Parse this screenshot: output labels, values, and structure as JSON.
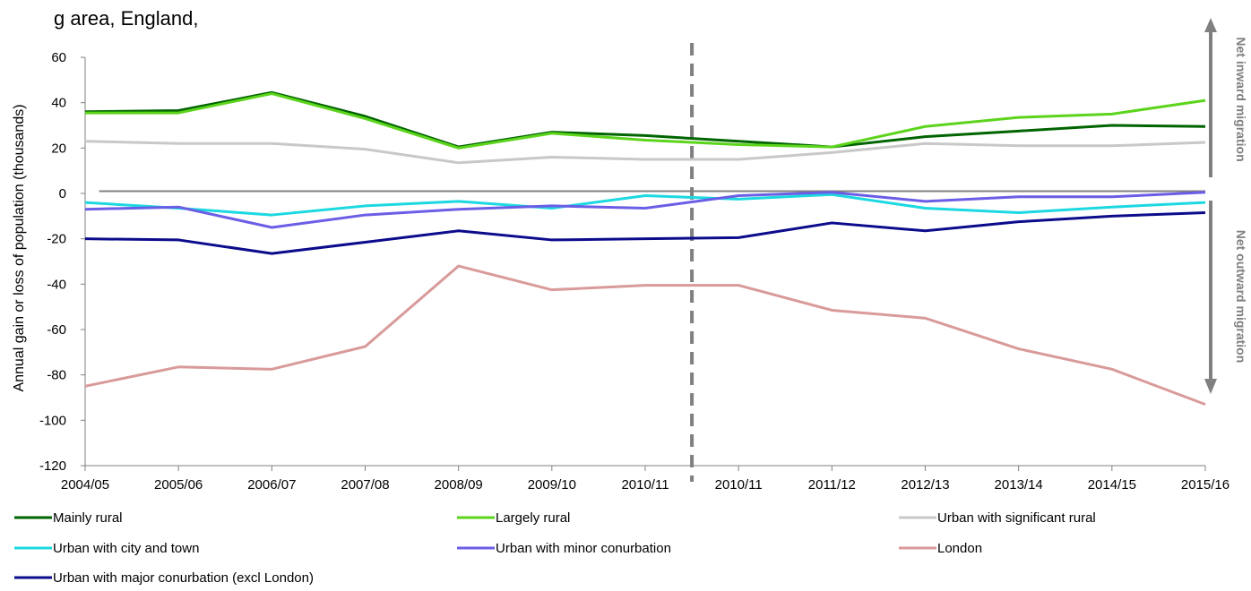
{
  "chart_data": {
    "type": "line",
    "title": "g area, England, ",
    "ylabel": "Annual gain or loss of population (thousands)",
    "xlabel": "",
    "ylim": [
      -120,
      60
    ],
    "yticks": [
      60,
      40,
      20,
      0,
      -20,
      -40,
      -60,
      -80,
      -100,
      -120
    ],
    "categories": [
      "2004/05",
      "2005/06",
      "2006/07",
      "2007/08",
      "2008/09",
      "2009/10",
      "2010/11",
      "2010/11",
      "2011/12",
      "2012/13",
      "2013/14",
      "2014/15",
      "2015/16"
    ],
    "reference_line": {
      "type": "vertical dashed",
      "between": [
        "2010/11",
        "2010/11"
      ]
    },
    "side_annotations": {
      "top": "Net inward migration",
      "bottom": "Net outward migration"
    },
    "grid": false,
    "legend_position": "bottom",
    "series": [
      {
        "name": "Mainly rural",
        "color": "#006400",
        "values": [
          36,
          36.5,
          44.5,
          34,
          20.5,
          27,
          25.5,
          23,
          20.5,
          25,
          27.5,
          30,
          29.5
        ]
      },
      {
        "name": "Largely rural",
        "color": "#5CD41C",
        "values": [
          35.5,
          35.5,
          44,
          33,
          20,
          26.5,
          23.5,
          21.5,
          20.5,
          29.5,
          33.5,
          35,
          41
        ]
      },
      {
        "name": "Urban with significant rural",
        "color": "#C8C8C8",
        "values": [
          23,
          22,
          22,
          19.5,
          13.5,
          16,
          15,
          15,
          18,
          22,
          21,
          21,
          22.5
        ]
      },
      {
        "name": "Urban with city and town",
        "color": "#1CD8E0",
        "values": [
          -4,
          -6.5,
          -9.5,
          -5.5,
          -3.5,
          -6.5,
          -1,
          -2.5,
          -0.5,
          -6.5,
          -8.5,
          -6,
          -4
        ]
      },
      {
        "name": "Urban with minor conurbation",
        "color": "#6A5EE6",
        "values": [
          -7,
          -6,
          -15,
          -9.5,
          -7,
          -5.5,
          -6.5,
          -1,
          0.5,
          -3.5,
          -1.5,
          -1.5,
          0.5
        ]
      },
      {
        "name": "London",
        "color": "#D99A9A",
        "values": [
          -85,
          -76.5,
          -77.5,
          -67.5,
          -32,
          -42.5,
          -40.5,
          -40.5,
          -51.5,
          -55,
          -68.5,
          -77.5,
          -93
        ]
      },
      {
        "name": "Urban with major conurbation (excl London)",
        "color": "#0B0B8C",
        "values": [
          -20,
          -20.5,
          -26.5,
          -21.5,
          -16.5,
          -20.5,
          -20,
          -19.5,
          -13,
          -16.5,
          -12.5,
          -10,
          -8.5
        ]
      }
    ]
  }
}
